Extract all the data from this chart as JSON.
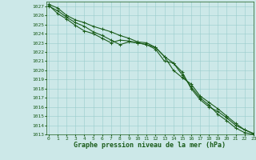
{
  "xlabel": "Graphe pression niveau de la mer (hPa)",
  "ylim": [
    1013,
    1027.5
  ],
  "xlim": [
    -0.3,
    23
  ],
  "yticks": [
    1013,
    1014,
    1015,
    1016,
    1017,
    1018,
    1019,
    1020,
    1021,
    1022,
    1023,
    1024,
    1025,
    1026,
    1027
  ],
  "xticks": [
    0,
    1,
    2,
    3,
    4,
    5,
    6,
    7,
    8,
    9,
    10,
    11,
    12,
    13,
    14,
    15,
    16,
    17,
    18,
    19,
    20,
    21,
    22,
    23
  ],
  "bg_color": "#cce8e8",
  "grid_color": "#99cccc",
  "line_color": "#1a5c1a",
  "line1_y": [
    1027.2,
    1026.8,
    1026.0,
    1025.5,
    1025.2,
    1024.8,
    1024.5,
    1024.2,
    1023.8,
    1023.5,
    1023.1,
    1023.0,
    1022.5,
    1021.5,
    1020.0,
    1019.2,
    1018.5,
    1017.2,
    1016.5,
    1015.8,
    1015.0,
    1014.2,
    1013.5,
    1013.1
  ],
  "line2_y": [
    1027.0,
    1026.5,
    1025.8,
    1025.2,
    1024.8,
    1024.2,
    1023.8,
    1023.3,
    1022.8,
    1023.1,
    1023.0,
    1022.8,
    1022.5,
    1021.5,
    1020.8,
    1019.5,
    1018.2,
    1017.0,
    1016.2,
    1015.2,
    1014.5,
    1013.7,
    1013.2,
    1013.0
  ],
  "line3_y": [
    1027.1,
    1026.2,
    1025.6,
    1024.9,
    1024.3,
    1024.0,
    1023.5,
    1023.0,
    1023.3,
    1023.2,
    1023.0,
    1022.8,
    1022.3,
    1021.0,
    1020.8,
    1019.8,
    1018.0,
    1016.8,
    1016.0,
    1015.5,
    1014.8,
    1014.0,
    1013.5,
    1013.1
  ],
  "marker": "+",
  "markersize": 3,
  "linewidth": 0.8,
  "tick_fontsize": 4.5,
  "label_fontsize": 6.0,
  "label_fontweight": "bold"
}
